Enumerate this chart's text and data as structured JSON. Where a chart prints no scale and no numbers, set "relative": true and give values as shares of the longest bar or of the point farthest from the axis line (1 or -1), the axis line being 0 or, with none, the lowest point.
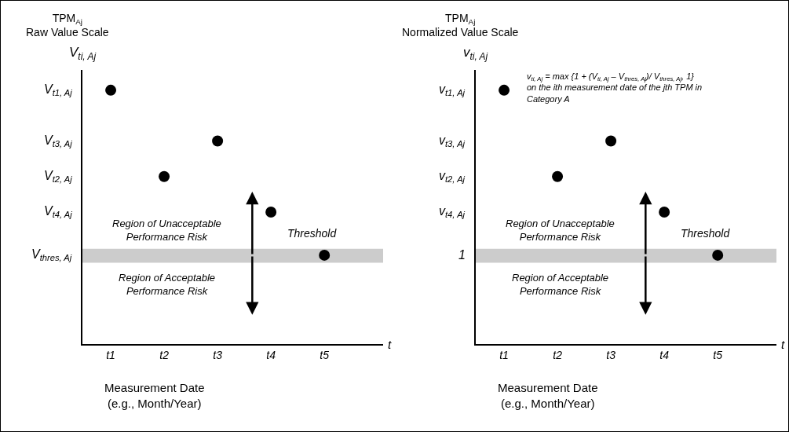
{
  "chart_data": [
    {
      "type": "scatter",
      "relative": true,
      "marker": "circle",
      "color": "#000000",
      "categories": [
        "t1",
        "t2",
        "t3",
        "t4",
        "t5"
      ],
      "values": [
        1,
        0.66,
        0.8,
        0.52,
        0.35
      ],
      "xlabel": "Measurement Date\n(e.g., Month/Year)",
      "ylabel": "TPM$_{Aj}$\nRaw Value Scale",
      "bands": [
        {
          "axis": "y",
          "from": 0.32,
          "to": 0.375,
          "label": "Threshold",
          "color": "#cccccc"
        }
      ],
      "annotations": [
        "V$_{ti, Aj}$",
        "t",
        "Region of Unacceptable\nPerformance Risk",
        "Region of Acceptable\nPerformance Risk",
        "V$_{t1, Aj}$",
        "V$_{t3, Aj}$",
        "V$_{t2, Aj}$",
        "V$_{t4, Aj}$",
        "V$_{thres, Aj}$"
      ]
    },
    {
      "type": "scatter",
      "relative": true,
      "marker": "circle",
      "color": "#000000",
      "categories": [
        "t1",
        "t2",
        "t3",
        "t4",
        "t5"
      ],
      "values": [
        1,
        0.66,
        0.8,
        0.52,
        0.35
      ],
      "xlabel": "Measurement Date\n(e.g., Month/Year)",
      "ylabel": "TPM$_{Aj}$\nNormalized Value Scale",
      "bands": [
        {
          "axis": "y",
          "from": 0.32,
          "to": 0.375,
          "label": "Threshold",
          "color": "#cccccc"
        }
      ],
      "annotations": [
        "v$_{ti, Aj}$",
        "t",
        "Region of Unacceptable\nPerformance Risk",
        "Region of Acceptable\nPerformance Risk",
        "v$_{t1, Aj}$",
        "v$_{t3, Aj}$",
        "v$_{t2, Aj}$",
        "v$_{t4, Aj}$",
        "1",
        "v$_{ti, Aj}$ = max {1 + (V$_{ti, Aj}$ – V$_{thres, Aj}$)/ V$_{thres, Aj}$, 1}\non the ith measurement date of the jth TPM in\nCategory A"
      ]
    }
  ]
}
